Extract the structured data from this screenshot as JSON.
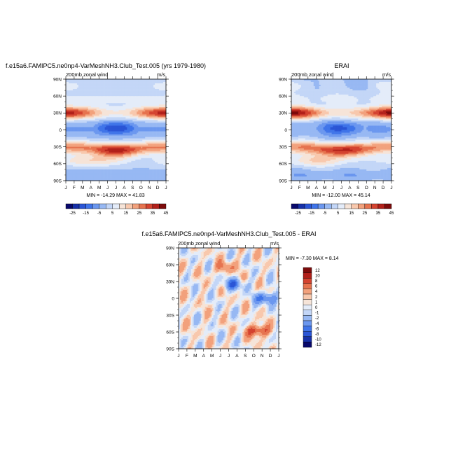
{
  "panels": [
    {
      "title": "f.e15a6.FAMIPC5.ne0np4-VarMeshNH3.Club_Test.005 (yrs 1979-1980)",
      "left_label": "200mb zonal wind",
      "right_label": "m/s",
      "stats": "MIN = -14.29  MAX = 41.83",
      "stats_position": "below-plot",
      "colorbar_orientation": "horizontal"
    },
    {
      "title": "ERAI",
      "left_label": "200mb zonal wind",
      "right_label": "m/s",
      "stats": "MIN = -12.00  MAX = 45.14",
      "stats_position": "below-plot",
      "colorbar_orientation": "horizontal"
    },
    {
      "title": "f.e15a6.FAMIPC5.ne0np4-VarMeshNH3.Club_Test.005 - ERAI",
      "left_label": "200mb zonal wind",
      "right_label": "m/s",
      "stats": "MIN =  -7.30  MAX =   8.14",
      "stats_position": "right-of-plot",
      "colorbar_orientation": "vertical"
    }
  ],
  "chart_data": [
    {
      "type": "heatmap",
      "variable": "200mb zonal wind",
      "units": "m/s",
      "x_ticks": [
        "J",
        "F",
        "M",
        "A",
        "M",
        "J",
        "J",
        "A",
        "S",
        "O",
        "N",
        "D",
        "J"
      ],
      "y_ticks": [
        "90N",
        "60N",
        "30N",
        "0",
        "30S",
        "60S",
        "90S"
      ],
      "ylim": [
        -90,
        90
      ],
      "levels": [
        -25,
        -20,
        -15,
        -10,
        -5,
        0,
        5,
        10,
        15,
        20,
        25,
        30,
        35,
        40,
        45
      ],
      "colorbar_labels": [
        "-25",
        "-15",
        "-5",
        "5",
        "15",
        "25",
        "35",
        "45"
      ],
      "colors": [
        "#08086b",
        "#1630a8",
        "#2a55d6",
        "#3f74e9",
        "#6b97ef",
        "#97b8f3",
        "#c3d6f7",
        "#e4ecf9",
        "#f6e4d8",
        "#f8c8ad",
        "#f2a17c",
        "#e6734f",
        "#d44330",
        "#b2201a",
        "#7d0b0b"
      ],
      "min": -14.29,
      "max": 41.83,
      "features": [
        {
          "name": "NH subtropical jet",
          "lat_center": 30,
          "month_center": [
            0,
            12
          ],
          "peak": 41.83
        },
        {
          "name": "SH jet",
          "lat_center": -32,
          "month_center": 7,
          "peak": 38
        },
        {
          "name": "tropical easterlies",
          "lat_center": 2,
          "month_center": 7,
          "peak": -14.29
        }
      ]
    },
    {
      "type": "heatmap",
      "variable": "200mb zonal wind",
      "units": "m/s",
      "x_ticks": [
        "J",
        "F",
        "M",
        "A",
        "M",
        "J",
        "J",
        "A",
        "S",
        "O",
        "N",
        "D",
        "J"
      ],
      "y_ticks": [
        "90N",
        "60N",
        "30N",
        "0",
        "30S",
        "60S",
        "90S"
      ],
      "ylim": [
        -90,
        90
      ],
      "levels": [
        -25,
        -20,
        -15,
        -10,
        -5,
        0,
        5,
        10,
        15,
        20,
        25,
        30,
        35,
        40,
        45
      ],
      "colorbar_labels": [
        "-25",
        "-15",
        "-5",
        "5",
        "15",
        "25",
        "35",
        "45"
      ],
      "colors": [
        "#08086b",
        "#1630a8",
        "#2a55d6",
        "#3f74e9",
        "#6b97ef",
        "#97b8f3",
        "#c3d6f7",
        "#e4ecf9",
        "#f6e4d8",
        "#f8c8ad",
        "#f2a17c",
        "#e6734f",
        "#d44330",
        "#b2201a",
        "#7d0b0b"
      ],
      "min": -12.0,
      "max": 45.14,
      "features": [
        {
          "name": "NH subtropical jet",
          "lat_center": 30,
          "month_center": [
            0,
            12
          ],
          "peak": 45.14
        },
        {
          "name": "SH jet",
          "lat_center": -32,
          "month_center": 7,
          "peak": 40
        },
        {
          "name": "tropical easterlies",
          "lat_center": 2,
          "month_center": 7,
          "peak": -12.0
        }
      ]
    },
    {
      "type": "heatmap",
      "variable": "200mb zonal wind difference",
      "units": "m/s",
      "x_ticks": [
        "J",
        "F",
        "M",
        "A",
        "M",
        "J",
        "J",
        "A",
        "S",
        "O",
        "N",
        "D",
        "J"
      ],
      "y_ticks": [
        "90N",
        "60N",
        "30N",
        "0",
        "30S",
        "60S",
        "90S"
      ],
      "ylim": [
        -90,
        90
      ],
      "levels": [
        -12,
        -10,
        -8,
        -6,
        -4,
        -2,
        -1,
        0,
        1,
        2,
        4,
        6,
        8,
        10,
        12
      ],
      "colorbar_labels": [
        "12",
        "10",
        "8",
        "6",
        "4",
        "2",
        "1",
        "0",
        "-1",
        "-2",
        "-4",
        "-6",
        "-8",
        "-10",
        "-12"
      ],
      "colors": [
        "#08086b",
        "#1630a8",
        "#2a55d6",
        "#3f74e9",
        "#6b97ef",
        "#97b8f3",
        "#c3d6f7",
        "#e4ecf9",
        "#f6e4d8",
        "#f8c8ad",
        "#f2a17c",
        "#e6734f",
        "#d44330",
        "#b2201a",
        "#7d0b0b"
      ],
      "min": -7.3,
      "max": 8.14,
      "features": [
        {
          "name": "positive anomaly",
          "lat_center": -58,
          "month_center": 9.5,
          "peak": 8.14
        },
        {
          "name": "positive anomaly",
          "lat_center": 55,
          "month_center": 5.5,
          "peak": 4
        },
        {
          "name": "negative anomaly",
          "lat_center": 25,
          "month_center": 6.5,
          "peak": -6
        },
        {
          "name": "negative anomaly",
          "lat_center": 0,
          "month_center": 10.5,
          "peak": -7.3
        }
      ]
    }
  ]
}
